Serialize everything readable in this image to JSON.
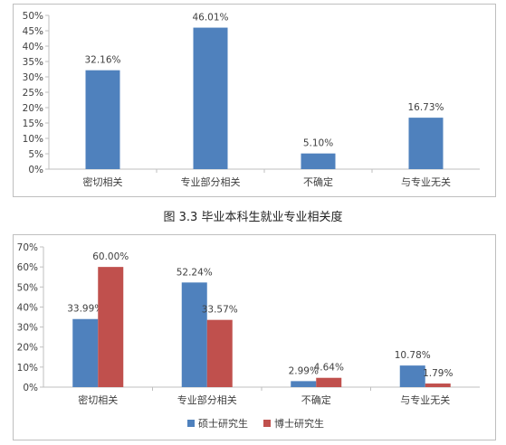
{
  "colors": {
    "blue": "#4f81bd",
    "red": "#c0504d",
    "axis": "#bfbfbf",
    "text": "#404040"
  },
  "figure_caption": "图 3.3    毕业本科生就业专业相关度",
  "chart_data": [
    {
      "type": "bar",
      "title": "",
      "xlabel": "",
      "ylabel": "",
      "ylim": [
        0,
        50
      ],
      "yticks": [
        "0%",
        "5%",
        "10%",
        "15%",
        "20%",
        "25%",
        "30%",
        "35%",
        "40%",
        "45%",
        "50%"
      ],
      "categories": [
        "密切相关",
        "专业部分相关",
        "不确定",
        "与专业无关"
      ],
      "series": [
        {
          "color": "#4f81bd",
          "values": [
            32.16,
            46.01,
            5.1,
            16.73
          ],
          "labels": [
            "32.16%",
            "46.01%",
            "5.10%",
            "16.73%"
          ]
        }
      ],
      "legend": "none",
      "grid": false
    },
    {
      "type": "bar",
      "title": "",
      "xlabel": "",
      "ylabel": "",
      "ylim": [
        0,
        70
      ],
      "yticks": [
        "0%",
        "10%",
        "20%",
        "30%",
        "40%",
        "50%",
        "60%",
        "70%"
      ],
      "categories": [
        "密切相关",
        "专业部分相关",
        "不确定",
        "与专业无关"
      ],
      "series": [
        {
          "name": "硕士研究生",
          "color": "#4f81bd",
          "values": [
            33.99,
            52.24,
            2.99,
            10.78
          ],
          "labels": [
            "33.99%",
            "52.24%",
            "2.99%",
            "10.78%"
          ]
        },
        {
          "name": "博士研究生",
          "color": "#c0504d",
          "values": [
            60.0,
            33.57,
            4.64,
            1.79
          ],
          "labels": [
            "60.00%",
            "33.57%",
            "4.64%",
            "1.79%"
          ]
        }
      ],
      "legend": "bottom",
      "grid": false
    }
  ]
}
